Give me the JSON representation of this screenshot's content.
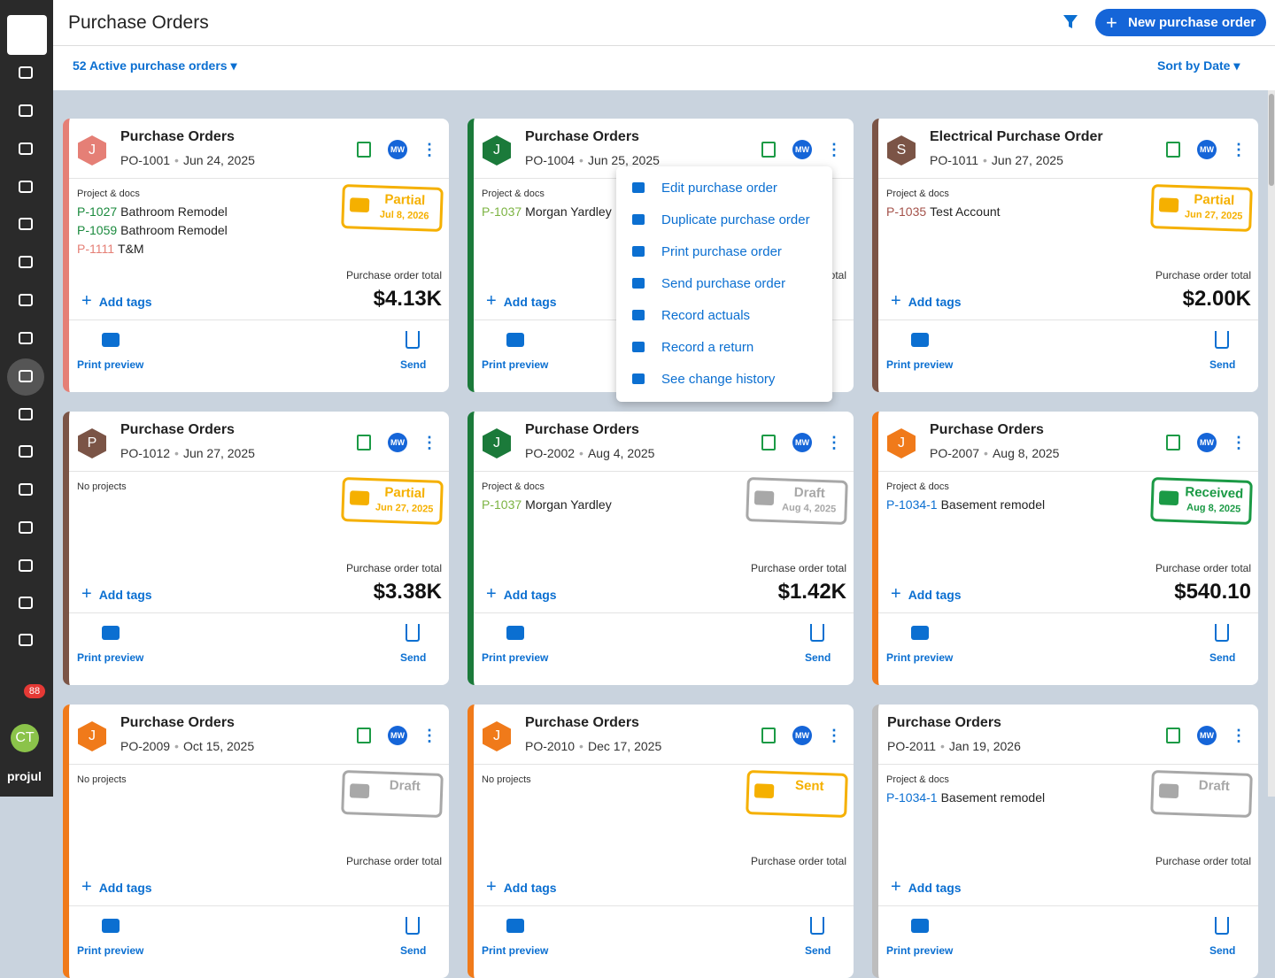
{
  "sidebar": {
    "badge": "88",
    "avatar": "CT",
    "brand": "projul"
  },
  "header": {
    "title": "Purchase Orders",
    "new_button": "New purchase order"
  },
  "toolbar": {
    "filter": "52 Active purchase orders",
    "sort": "Sort by Date"
  },
  "card_labels": {
    "user": "MW",
    "total_label": "Purchase order total",
    "add_tags": "Add tags",
    "print_preview": "Print preview",
    "send": "Send"
  },
  "cards": [
    {
      "avatar": "J",
      "color": "#e57f76",
      "title": "Purchase Orders",
      "po": "PO-1001",
      "date": "Jun 24, 2025",
      "section": "Project & docs",
      "projects": [
        {
          "code": "P-1027",
          "name": "Bathroom Remodel",
          "color": "#1b8a3e"
        },
        {
          "code": "P-1059",
          "name": "Bathroom Remodel",
          "color": "#1b8a3e"
        },
        {
          "code": "P-1111",
          "name": "T&M",
          "color": "#e57f76"
        }
      ],
      "status": {
        "label": "Partial",
        "date": "Jul 8, 2026",
        "color": "#f5b000"
      },
      "total": "$4.13K"
    },
    {
      "avatar": "J",
      "color": "#1b7a3a",
      "title": "Purchase Orders",
      "po": "PO-1004",
      "date": "Jun 25, 2025",
      "section": "Project & docs",
      "projects": [
        {
          "code": "P-1037",
          "name": "Morgan Yardley",
          "color": "#7cb342"
        }
      ]
    },
    {
      "avatar": "S",
      "color": "#7b5446",
      "title": "Electrical Purchase Order",
      "po": "PO-1011",
      "date": "Jun 27, 2025",
      "section": "Project & docs",
      "projects": [
        {
          "code": "P-1035",
          "name": "Test Account",
          "color": "#a4524a"
        }
      ],
      "status": {
        "label": "Partial",
        "date": "Jun 27, 2025",
        "color": "#f5b000"
      },
      "total": "$2.00K"
    },
    {
      "avatar": "P",
      "color": "#7b5446",
      "title": "Purchase Orders",
      "po": "PO-1012",
      "date": "Jun 27, 2025",
      "section": "No projects",
      "projects": [],
      "status": {
        "label": "Partial",
        "date": "Jun 27, 2025",
        "color": "#f5b000"
      },
      "total": "$3.38K"
    },
    {
      "avatar": "J",
      "color": "#1b7a3a",
      "title": "Purchase Orders",
      "po": "PO-2002",
      "date": "Aug 4, 2025",
      "section": "Project & docs",
      "projects": [
        {
          "code": "P-1037",
          "name": "Morgan Yardley",
          "color": "#7cb342"
        }
      ],
      "status": {
        "label": "Draft",
        "date": "Aug 4, 2025",
        "color": "#a8a8a8"
      },
      "total": "$1.42K"
    },
    {
      "avatar": "J",
      "color": "#f07a1a",
      "title": "Purchase Orders",
      "po": "PO-2007",
      "date": "Aug 8, 2025",
      "section": "Project & docs",
      "projects": [
        {
          "code": "P-1034-1",
          "name": "Basement remodel",
          "color": "#0b6fd1"
        }
      ],
      "status": {
        "label": "Received",
        "date": "Aug 8, 2025",
        "color": "#1b9a45"
      },
      "total": "$540.10"
    },
    {
      "avatar": "J",
      "color": "#f07a1a",
      "title": "Purchase Orders",
      "po": "PO-2009",
      "date": "Oct 15, 2025",
      "section": "No projects",
      "projects": [],
      "status": {
        "label": "Draft",
        "color": "#a8a8a8"
      }
    },
    {
      "avatar": "J",
      "color": "#f07a1a",
      "title": "Purchase Orders",
      "po": "PO-2010",
      "date": "Dec 17, 2025",
      "section": "No projects",
      "projects": [],
      "status": {
        "label": "Sent",
        "color": "#f5b000"
      }
    },
    {
      "color": "#bdbdbd",
      "title": "Purchase Orders",
      "po": "PO-2011",
      "date": "Jan 19, 2026",
      "section": "Project & docs",
      "projects": [
        {
          "code": "P-1034-1",
          "name": "Basement remodel",
          "color": "#0b6fd1"
        }
      ],
      "status": {
        "label": "Draft",
        "color": "#a8a8a8"
      }
    }
  ],
  "menu": [
    "Edit purchase order",
    "Duplicate purchase order",
    "Print purchase order",
    "Send purchase order",
    "Record actuals",
    "Record a return",
    "See change history"
  ]
}
